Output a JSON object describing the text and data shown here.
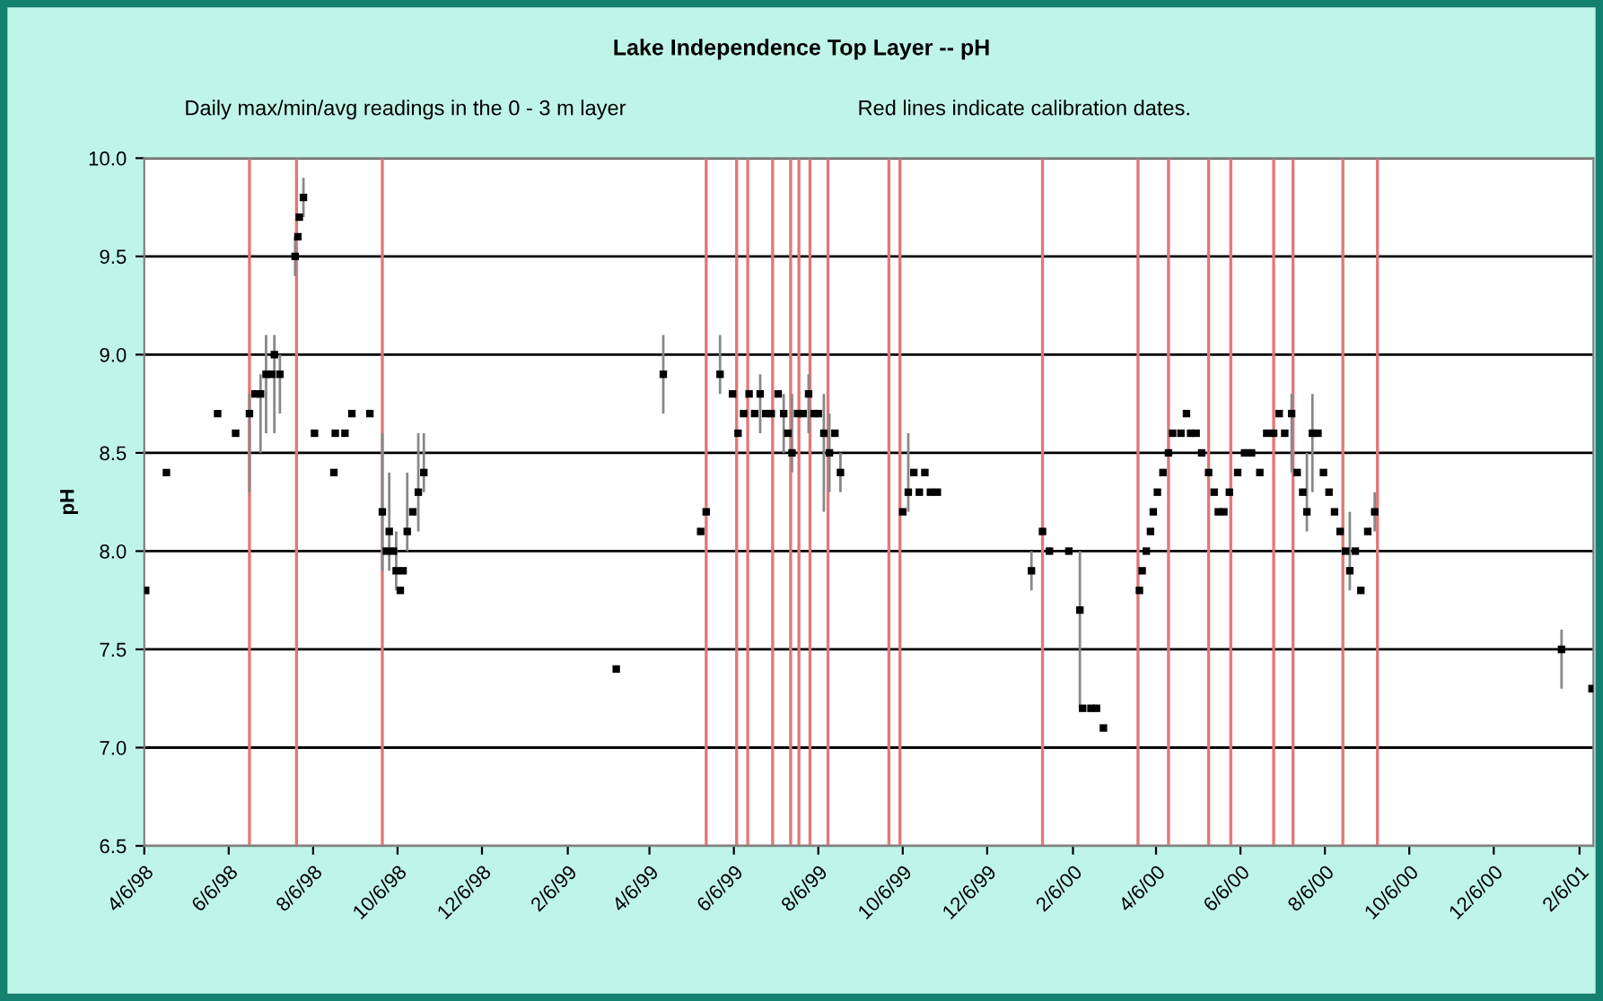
{
  "chart_data": {
    "type": "scatter",
    "title": "Lake Independence Top Layer -- pH",
    "subtitle": "Daily max/min/avg readings in the 0 - 3 m layer",
    "annotations": [
      "Red lines indicate calibration dates."
    ],
    "ylabel": "pH",
    "xlim": [
      "1998-04-06",
      "2001-02-16"
    ],
    "xticks": [
      {
        "value": "1998-04-06",
        "label": "4/6/98"
      },
      {
        "value": "1998-06-06",
        "label": "6/6/98"
      },
      {
        "value": "1998-08-06",
        "label": "8/6/98"
      },
      {
        "value": "1998-10-06",
        "label": "10/6/98"
      },
      {
        "value": "1998-12-06",
        "label": "12/6/98"
      },
      {
        "value": "1999-02-06",
        "label": "2/6/99"
      },
      {
        "value": "1999-04-06",
        "label": "4/6/99"
      },
      {
        "value": "1999-06-06",
        "label": "6/6/99"
      },
      {
        "value": "1999-08-06",
        "label": "8/6/99"
      },
      {
        "value": "1999-10-06",
        "label": "10/6/99"
      },
      {
        "value": "1999-12-06",
        "label": "12/6/99"
      },
      {
        "value": "2000-02-06",
        "label": "2/6/00"
      },
      {
        "value": "2000-04-06",
        "label": "4/6/00"
      },
      {
        "value": "2000-06-06",
        "label": "6/6/00"
      },
      {
        "value": "2000-08-06",
        "label": "8/6/00"
      },
      {
        "value": "2000-10-06",
        "label": "10/6/00"
      },
      {
        "value": "2000-12-06",
        "label": "12/6/00"
      },
      {
        "value": "2001-02-06",
        "label": "2/6/01"
      }
    ],
    "ylim": [
      6.5,
      10.0
    ],
    "yticks": [
      {
        "value": 6.5,
        "label": "6.5"
      },
      {
        "value": 7.0,
        "label": "7.0"
      },
      {
        "value": 7.5,
        "label": "7.5"
      },
      {
        "value": 8.0,
        "label": "8.0"
      },
      {
        "value": 8.5,
        "label": "8.5"
      },
      {
        "value": 9.0,
        "label": "9.0"
      },
      {
        "value": 9.5,
        "label": "9.5"
      },
      {
        "value": 10.0,
        "label": "10.0"
      }
    ],
    "grid": "y",
    "legend": false,
    "series": [
      {
        "color": "#000000",
        "x": [
          "1998-04-07",
          "1998-04-22",
          "1998-05-29",
          "1998-06-11",
          "1998-06-21",
          "1998-06-25",
          "1998-06-29",
          "1998-07-03",
          "1998-07-07",
          "1998-07-09",
          "1998-07-13",
          "1998-07-24",
          "1998-07-26",
          "1998-07-27",
          "1998-07-30",
          "1998-08-07",
          "1998-08-21",
          "1998-08-22",
          "1998-08-29",
          "1998-09-03",
          "1998-09-16",
          "1998-09-25",
          "1998-09-28",
          "1998-09-30",
          "1998-10-03",
          "1998-10-05",
          "1998-10-08",
          "1998-10-10",
          "1998-10-13",
          "1998-10-17",
          "1998-10-21",
          "1998-10-25",
          "1999-03-13",
          "1999-04-16",
          "1999-05-13",
          "1999-05-17",
          "1999-05-27",
          "1999-06-05",
          "1999-06-09",
          "1999-06-13",
          "1999-06-17",
          "1999-06-21",
          "1999-06-25",
          "1999-06-29",
          "1999-07-03",
          "1999-07-08",
          "1999-07-12",
          "1999-07-15",
          "1999-07-18",
          "1999-07-22",
          "1999-07-26",
          "1999-07-30",
          "1999-08-03",
          "1999-08-06",
          "1999-08-10",
          "1999-08-14",
          "1999-08-18",
          "1999-08-22",
          "1999-10-06",
          "1999-10-10",
          "1999-10-14",
          "1999-10-18",
          "1999-10-22",
          "1999-10-26",
          "1999-10-31",
          "2000-01-07",
          "2000-01-15",
          "2000-01-20",
          "2000-02-03",
          "2000-02-11",
          "2000-02-13",
          "2000-02-19",
          "2000-02-23",
          "2000-02-28",
          "2000-03-25",
          "2000-03-27",
          "2000-03-30",
          "2000-04-02",
          "2000-04-04",
          "2000-04-07",
          "2000-04-11",
          "2000-04-15",
          "2000-04-18",
          "2000-04-24",
          "2000-04-28",
          "2000-05-01",
          "2000-05-05",
          "2000-05-09",
          "2000-05-14",
          "2000-05-18",
          "2000-05-21",
          "2000-05-25",
          "2000-05-29",
          "2000-06-04",
          "2000-06-09",
          "2000-06-14",
          "2000-06-20",
          "2000-06-25",
          "2000-06-30",
          "2000-07-04",
          "2000-07-08",
          "2000-07-13",
          "2000-07-17",
          "2000-07-21",
          "2000-07-24",
          "2000-07-28",
          "2000-08-01",
          "2000-08-05",
          "2000-08-09",
          "2000-08-13",
          "2000-08-17",
          "2000-08-21",
          "2000-08-24",
          "2000-08-28",
          "2000-09-01",
          "2000-09-06",
          "2000-09-11",
          "2001-01-24",
          "2001-02-15"
        ],
        "values": [
          7.8,
          8.4,
          8.7,
          8.6,
          8.7,
          8.8,
          8.8,
          8.9,
          8.9,
          9.0,
          8.9,
          9.5,
          9.6,
          9.7,
          9.8,
          8.6,
          8.4,
          8.6,
          8.6,
          8.7,
          8.7,
          8.2,
          8.0,
          8.1,
          8.0,
          7.9,
          7.8,
          7.9,
          8.1,
          8.2,
          8.3,
          8.4,
          7.4,
          8.9,
          8.1,
          8.2,
          8.9,
          8.8,
          8.6,
          8.7,
          8.8,
          8.7,
          8.8,
          8.7,
          8.7,
          8.8,
          8.7,
          8.6,
          8.5,
          8.7,
          8.7,
          8.8,
          8.7,
          8.7,
          8.6,
          8.5,
          8.6,
          8.4,
          8.2,
          8.3,
          8.4,
          8.3,
          8.4,
          8.3,
          8.3,
          7.9,
          8.1,
          8.0,
          8.0,
          7.7,
          7.2,
          7.2,
          7.2,
          7.1,
          7.8,
          7.9,
          8.0,
          8.1,
          8.2,
          8.3,
          8.4,
          8.5,
          8.6,
          8.6,
          8.7,
          8.6,
          8.6,
          8.5,
          8.4,
          8.3,
          8.2,
          8.2,
          8.3,
          8.4,
          8.5,
          8.5,
          8.4,
          8.6,
          8.6,
          8.7,
          8.6,
          8.7,
          8.4,
          8.3,
          8.2,
          8.6,
          8.6,
          8.4,
          8.3,
          8.2,
          8.1,
          8.0,
          7.9,
          8.0,
          7.8,
          8.1,
          8.2,
          7.5,
          7.3
        ],
        "errors": [
          null,
          null,
          null,
          null,
          [
            8.3,
            8.8
          ],
          null,
          [
            8.5,
            8.9
          ],
          [
            8.6,
            9.1
          ],
          null,
          [
            8.6,
            9.1
          ],
          [
            8.7,
            9.0
          ],
          [
            9.4,
            9.6
          ],
          null,
          null,
          [
            9.7,
            9.9
          ],
          null,
          null,
          null,
          null,
          null,
          null,
          [
            7.9,
            8.6
          ],
          null,
          [
            7.9,
            8.4
          ],
          null,
          [
            7.8,
            8.1
          ],
          null,
          null,
          [
            8.0,
            8.4
          ],
          null,
          [
            8.1,
            8.6
          ],
          [
            8.3,
            8.6
          ],
          null,
          [
            8.7,
            9.1
          ],
          null,
          null,
          [
            8.8,
            9.1
          ],
          null,
          null,
          null,
          null,
          null,
          [
            8.6,
            8.9
          ],
          null,
          null,
          null,
          [
            8.5,
            8.8
          ],
          null,
          [
            8.4,
            8.8
          ],
          null,
          null,
          [
            8.6,
            8.9
          ],
          null,
          null,
          [
            8.2,
            8.8
          ],
          [
            8.3,
            8.7
          ],
          null,
          [
            8.3,
            8.5
          ],
          null,
          [
            8.2,
            8.6
          ],
          null,
          null,
          null,
          null,
          null,
          [
            7.8,
            8.0
          ],
          null,
          null,
          null,
          [
            7.2,
            8.0
          ],
          null,
          null,
          null,
          null,
          null,
          null,
          null,
          null,
          null,
          null,
          null,
          null,
          null,
          null,
          null,
          null,
          null,
          null,
          null,
          null,
          null,
          null,
          null,
          null,
          null,
          null,
          null,
          null,
          null,
          null,
          null,
          [
            8.4,
            8.8
          ],
          null,
          null,
          [
            8.1,
            8.5
          ],
          [
            8.3,
            8.8
          ],
          null,
          null,
          null,
          null,
          null,
          null,
          [
            7.8,
            8.2
          ],
          null,
          null,
          null,
          [
            8.1,
            8.3
          ],
          [
            7.3,
            7.6
          ],
          null
        ]
      }
    ],
    "ref_lines": [
      {
        "axis": "x",
        "value": "1998-06-21",
        "color": "#e07878"
      },
      {
        "axis": "x",
        "value": "1998-07-25",
        "color": "#e07878"
      },
      {
        "axis": "x",
        "value": "1998-09-25",
        "color": "#e07878"
      },
      {
        "axis": "x",
        "value": "1999-05-17",
        "color": "#e07878"
      },
      {
        "axis": "x",
        "value": "1999-06-08",
        "color": "#e07878"
      },
      {
        "axis": "x",
        "value": "1999-06-16",
        "color": "#e07878"
      },
      {
        "axis": "x",
        "value": "1999-07-04",
        "color": "#e07878"
      },
      {
        "axis": "x",
        "value": "1999-07-17",
        "color": "#e07878"
      },
      {
        "axis": "x",
        "value": "1999-07-23",
        "color": "#e07878"
      },
      {
        "axis": "x",
        "value": "1999-07-31",
        "color": "#e07878"
      },
      {
        "axis": "x",
        "value": "1999-08-13",
        "color": "#e07878"
      },
      {
        "axis": "x",
        "value": "1999-09-26",
        "color": "#e07878"
      },
      {
        "axis": "x",
        "value": "1999-10-04",
        "color": "#e07878"
      },
      {
        "axis": "x",
        "value": "2000-01-15",
        "color": "#e07878"
      },
      {
        "axis": "x",
        "value": "2000-03-24",
        "color": "#e07878"
      },
      {
        "axis": "x",
        "value": "2000-04-15",
        "color": "#e07878"
      },
      {
        "axis": "x",
        "value": "2000-05-14",
        "color": "#e07878"
      },
      {
        "axis": "x",
        "value": "2000-05-30",
        "color": "#e07878"
      },
      {
        "axis": "x",
        "value": "2000-06-30",
        "color": "#e07878"
      },
      {
        "axis": "x",
        "value": "2000-07-14",
        "color": "#e07878"
      },
      {
        "axis": "x",
        "value": "2000-08-19",
        "color": "#e07878"
      },
      {
        "axis": "x",
        "value": "2000-09-13",
        "color": "#e07878"
      }
    ]
  }
}
